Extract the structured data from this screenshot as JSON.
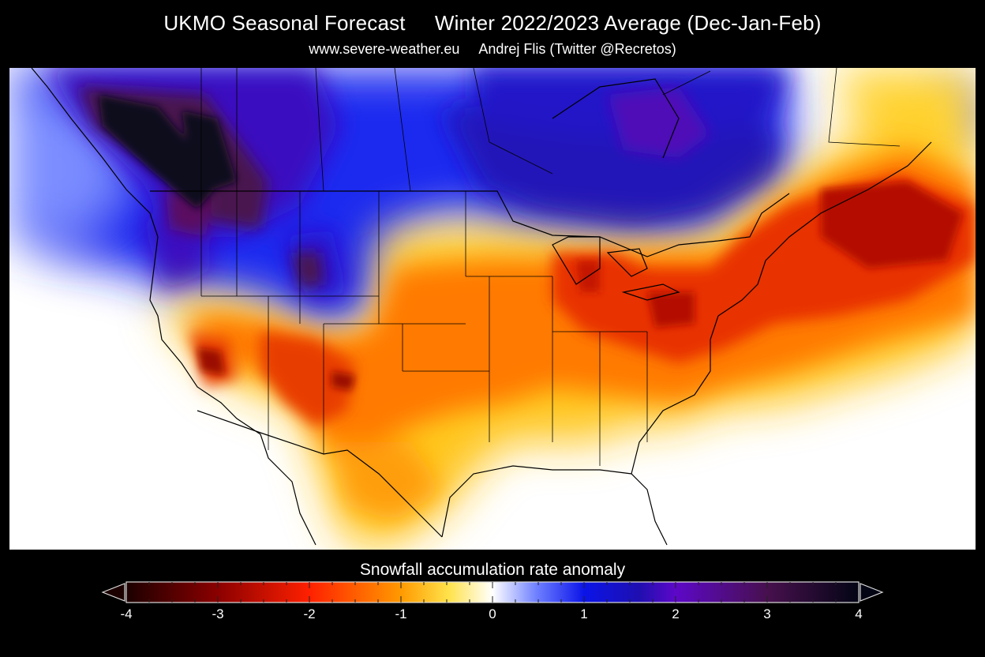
{
  "header": {
    "title": "UKMO Seasonal Forecast     Winter 2022/2023 Average (Dec-Jan-Feb)",
    "subtitle": "www.severe-weather.eu     Andrej Flis (Twitter @Recretos)"
  },
  "legend": {
    "title": "Snowfall accumulation rate anomaly",
    "ticks": [
      "-4",
      "-3",
      "-2",
      "-1",
      "0",
      "1",
      "2",
      "3",
      "4"
    ],
    "range": [
      -4,
      4
    ],
    "colors": {
      "n4": "#1c0000",
      "n3": "#8b0000",
      "n2": "#ff2000",
      "n1": "#ff9a00",
      "n05": "#ffe24a",
      "zero": "#ffffff",
      "p05": "#6f80ff",
      "p1": "#0b14e8",
      "p15": "#1e0fb0",
      "p2": "#5d08c8",
      "p3": "#47104e",
      "p4": "#030514"
    }
  },
  "map": {
    "region": "North America",
    "colors": {
      "background": "#ffffff",
      "border": "#000000",
      "strong_positive": "#1e0fb0",
      "very_strong_positive": "#3a0f55",
      "deepest": "#05051a",
      "negative": "#ff8c00",
      "strong_negative": "#e62e00",
      "very_strong_negative": "#b81500"
    }
  }
}
